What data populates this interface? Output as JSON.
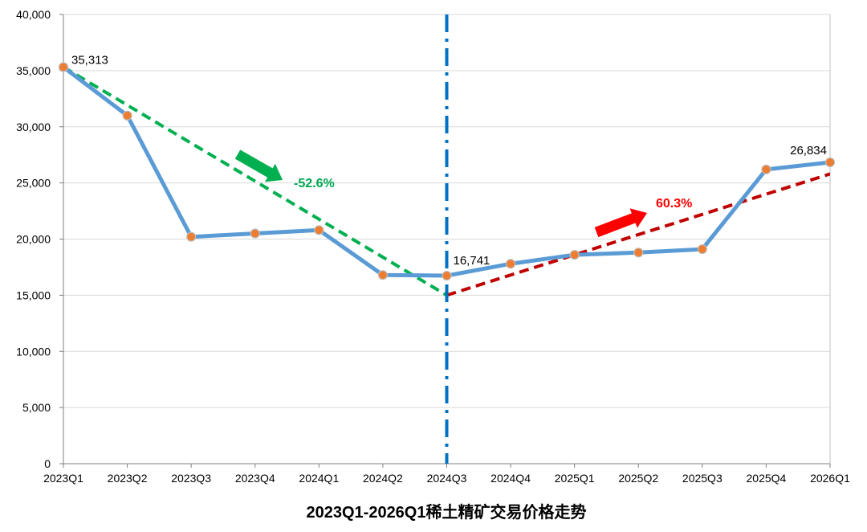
{
  "chart_data": {
    "type": "line",
    "title": "2023Q1-2026Q1稀土精矿交易价格走势",
    "categories": [
      "2023Q1",
      "2023Q2",
      "2023Q3",
      "2023Q4",
      "2024Q1",
      "2024Q2",
      "2024Q3",
      "2024Q4",
      "2025Q1",
      "2025Q2",
      "2025Q3",
      "2025Q4",
      "2026Q1"
    ],
    "y_ticks": [
      "0",
      "5,000",
      "10,000",
      "15,000",
      "20,000",
      "25,000",
      "30,000",
      "35,000",
      "40,000"
    ],
    "ylim": [
      0,
      40000
    ],
    "grid": true,
    "series": [
      {
        "values": [
          35313,
          31000,
          20200,
          20500,
          20800,
          16800,
          16741,
          17800,
          18600,
          18800,
          19100,
          26200,
          26834
        ],
        "color": "#5b9bd5",
        "marker_color": "#ed7d31"
      }
    ],
    "data_labels": [
      {
        "index": 0,
        "text": "35,313"
      },
      {
        "index": 6,
        "text": "16,741"
      },
      {
        "index": 12,
        "text": "26,834"
      }
    ],
    "trend_down": {
      "from_index": 0,
      "from_value": 35313,
      "to_index": 6,
      "to_value": 15000,
      "color": "#00b050",
      "label": "-52.6%"
    },
    "trend_up": {
      "from_index": 6,
      "from_value": 15000,
      "to_index": 12,
      "to_value": 25800,
      "color": "#c00000",
      "label": "60.3%"
    },
    "divider_index": 6,
    "divider_color": "#0070c0"
  }
}
